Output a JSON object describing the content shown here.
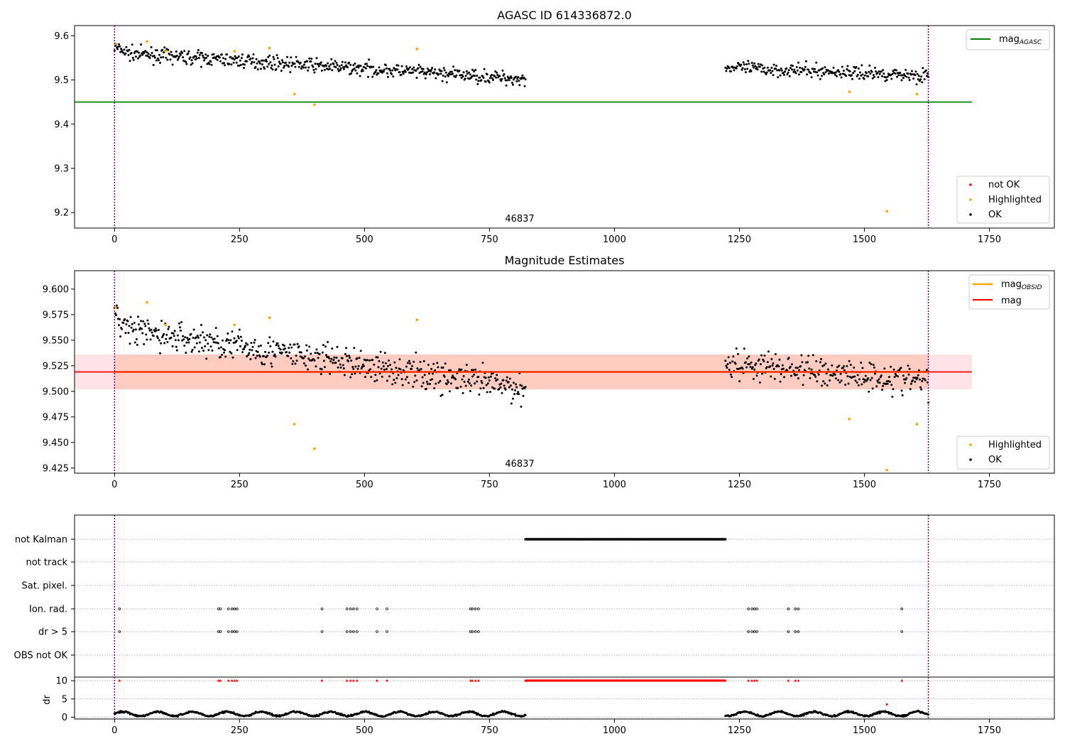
{
  "colors": {
    "ok": "#000000",
    "highlighted": "#ffa500",
    "not_ok": "#ff0000",
    "mag_agasc_line": "#008000",
    "mag_obsid_line": "#ffa500",
    "mag_line": "#ff0000",
    "band_outer": "#ffc0cb",
    "band_inner": "#ffa07a",
    "boundary": "#800080"
  },
  "chart_data": [
    {
      "type": "scatter",
      "title": "AGASC ID 614336872.0",
      "xlim": [
        -80,
        1880
      ],
      "ylim": [
        9.165,
        9.623
      ],
      "x_ticks": [
        0,
        250,
        500,
        750,
        1000,
        1250,
        1500,
        1750
      ],
      "y_ticks": [
        9.2,
        9.3,
        9.4,
        9.5,
        9.6
      ],
      "y_tick_labels": [
        "9.2",
        "9.3",
        "9.4",
        "9.5",
        "9.6"
      ],
      "x_tick_labels": [
        "0",
        "250",
        "500",
        "750",
        "1000",
        "1250",
        "1500",
        "1750"
      ],
      "annotation": {
        "x": 780,
        "y": 9.178,
        "text": "46837"
      },
      "vlines": [
        0,
        1628
      ],
      "hline": {
        "y": 9.45,
        "x_range": [
          -80,
          1715
        ],
        "label_main": "mag",
        "label_sub": "AGASC"
      },
      "legend_main": [
        "not OK",
        "Highlighted",
        "OK"
      ],
      "ok_segments": [
        {
          "x_start": 0,
          "x_end": 822,
          "n": 560,
          "y_start": 9.562,
          "y_end": 9.502,
          "scatter": 0.014
        },
        {
          "x_start": 1222,
          "x_end": 1628,
          "n": 260,
          "y_start": 9.528,
          "y_end": 9.51,
          "scatter": 0.014
        }
      ],
      "highlighted_points": [
        [
          2,
          9.582
        ],
        [
          65,
          9.587
        ],
        [
          102,
          9.565
        ],
        [
          240,
          9.565
        ],
        [
          310,
          9.572
        ],
        [
          360,
          9.468
        ],
        [
          400,
          9.444
        ],
        [
          605,
          9.57
        ],
        [
          1470,
          9.473
        ],
        [
          1545,
          9.203
        ],
        [
          1605,
          9.468
        ]
      ]
    },
    {
      "type": "scatter",
      "title": "Magnitude Estimates",
      "xlim": [
        -80,
        1880
      ],
      "ylim": [
        9.42,
        9.618
      ],
      "x_ticks": [
        0,
        250,
        500,
        750,
        1000,
        1250,
        1500,
        1750
      ],
      "x_tick_labels": [
        "0",
        "250",
        "500",
        "750",
        "1000",
        "1250",
        "1500",
        "1750"
      ],
      "y_ticks": [
        9.425,
        9.45,
        9.475,
        9.5,
        9.525,
        9.55,
        9.575,
        9.6
      ],
      "y_tick_labels": [
        "9.425",
        "9.450",
        "9.475",
        "9.500",
        "9.525",
        "9.550",
        "9.575",
        "9.600"
      ],
      "annotation": {
        "x": 780,
        "y": 9.428,
        "text": "46837"
      },
      "vlines": [
        0,
        1628
      ],
      "band": {
        "y_low": 9.502,
        "y_high": 9.536,
        "x_range": [
          -80,
          1715
        ]
      },
      "band_inner": {
        "y_low": 9.502,
        "y_high": 9.536,
        "x_range": [
          0,
          1628
        ]
      },
      "mag_line": {
        "y": 9.519,
        "x_range": [
          -80,
          1715
        ],
        "label": "mag"
      },
      "mag_obsid_line": {
        "y": 9.519,
        "x_range": [
          0,
          1628
        ],
        "label_main": "mag",
        "label_sub": "OBSID"
      },
      "legend_main": [
        "Highlighted",
        "OK"
      ],
      "ok_segments": [
        {
          "x_start": 0,
          "x_end": 822,
          "n": 560,
          "y_start": 9.562,
          "y_end": 9.502,
          "scatter": 0.014
        },
        {
          "x_start": 1222,
          "x_end": 1628,
          "n": 260,
          "y_start": 9.528,
          "y_end": 9.51,
          "scatter": 0.014
        }
      ],
      "highlighted_points": [
        [
          2,
          9.582
        ],
        [
          65,
          9.587
        ],
        [
          102,
          9.565
        ],
        [
          240,
          9.565
        ],
        [
          310,
          9.572
        ],
        [
          360,
          9.468
        ],
        [
          400,
          9.444
        ],
        [
          605,
          9.57
        ],
        [
          1470,
          9.473
        ],
        [
          1545,
          9.423
        ],
        [
          1605,
          9.468
        ]
      ]
    },
    {
      "type": "scatter",
      "title": "",
      "xlim": [
        -80,
        1880
      ],
      "x_ticks": [
        0,
        250,
        500,
        750,
        1000,
        1250,
        1500,
        1750
      ],
      "x_tick_labels": [
        "0",
        "250",
        "500",
        "750",
        "1000",
        "1250",
        "1500",
        "1750"
      ],
      "vlines": [
        0,
        1628
      ],
      "flag_rows": [
        "not Kalman",
        "not track",
        "Sat. pixel.",
        "Ion. rad.",
        "dr > 5",
        "OBS not OK"
      ],
      "not_kalman_range": [
        822,
        1222
      ],
      "flag_events_x": [
        10,
        208,
        212,
        228,
        235,
        240,
        245,
        415,
        465,
        472,
        478,
        485,
        525,
        545,
        712,
        716,
        722,
        728,
        1268,
        1275,
        1280,
        1285,
        1348,
        1362,
        1368,
        1575
      ],
      "dr_ylabel": "dr",
      "dr_ylim": [
        -0.5,
        11
      ],
      "dr_ticks": [
        0,
        5,
        10
      ],
      "dr_tick_labels": [
        "0",
        "5",
        "10"
      ],
      "dr_clip_value": 10,
      "dr_outlier": [
        1545,
        3.5
      ],
      "dr_segments": [
        {
          "x_start": 0,
          "x_end": 822,
          "n": 560
        },
        {
          "x_start": 1222,
          "x_end": 1628,
          "n": 260
        }
      ]
    }
  ]
}
